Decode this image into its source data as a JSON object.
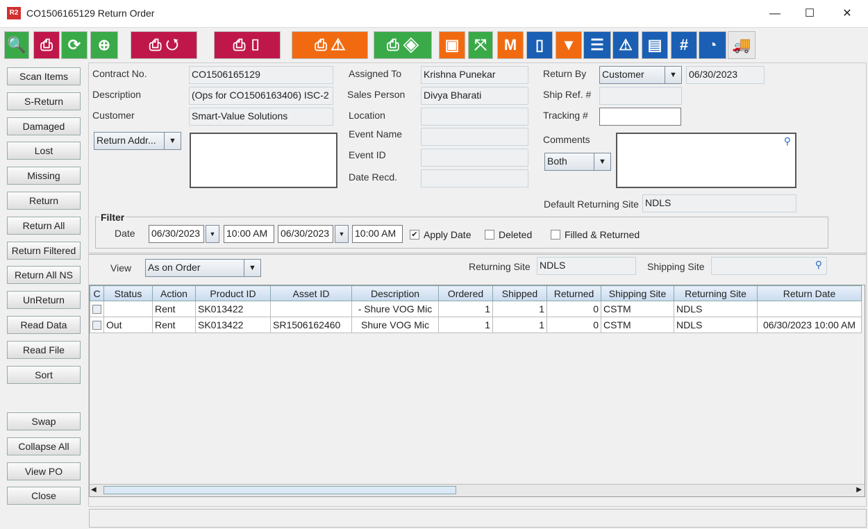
{
  "window": {
    "logo": "R2",
    "title": "CO1506165129 Return Order",
    "minimize": "—",
    "maximize": "☐",
    "close": "✕"
  },
  "toolbar": [
    {
      "icon": "search-icon",
      "glyph": "🔍",
      "color": "#3aaa49"
    },
    {
      "icon": "printer-icon",
      "glyph": "⎙",
      "color": "#c0174a"
    },
    {
      "icon": "refresh-icon",
      "glyph": "⟳",
      "color": "#3aaa49"
    },
    {
      "icon": "zoom-in-icon",
      "glyph": "⊕",
      "color": "#3aaa49"
    },
    {
      "icon": "print-return-icon",
      "glyph": "⎙ ↺",
      "color": "#c0174a"
    },
    {
      "icon": "print-box-icon",
      "glyph": "⎙ ▯",
      "color": "#c0174a"
    },
    {
      "icon": "print-warning-icon",
      "glyph": "⎙ ⚠",
      "color": "#f26a10"
    },
    {
      "icon": "print-layers-icon",
      "glyph": "⎙ ◈",
      "color": "#3aaa49"
    },
    {
      "icon": "box-icon",
      "glyph": "▣",
      "color": "#f26a10"
    },
    {
      "icon": "expand-icon",
      "glyph": "⤧",
      "color": "#3aaa49"
    },
    {
      "icon": "box-m-icon",
      "glyph": "M",
      "color": "#f26a10"
    },
    {
      "icon": "book-icon",
      "glyph": "▯",
      "color": "#1a5fb4"
    },
    {
      "icon": "filter-icon",
      "glyph": "▼",
      "color": "#f26a10"
    },
    {
      "icon": "list-icon",
      "glyph": "☰",
      "color": "#1a5fb4"
    },
    {
      "icon": "warning-eye-icon",
      "glyph": "⚠",
      "color": "#1a5fb4"
    },
    {
      "icon": "comment-icon",
      "glyph": "▤",
      "color": "#1a5fb4"
    },
    {
      "icon": "hash-icon",
      "glyph": "#",
      "color": "#1a5fb4"
    },
    {
      "icon": "gauge-icon",
      "glyph": "◔",
      "color": "#1a5fb4"
    },
    {
      "icon": "truck-icon",
      "glyph": "🚚",
      "color": "#e8e8e8"
    }
  ],
  "side_buttons": [
    "Scan Items",
    "S-Return",
    "Damaged",
    "Lost",
    "Missing",
    "Return",
    "Return All",
    "Return Filtered",
    "Return All NS",
    "UnReturn",
    "Read Data",
    "Read File",
    "Sort",
    "Swap",
    "Collapse All",
    "View PO",
    "Close"
  ],
  "form": {
    "contract_label": "Contract No.",
    "contract": "CO1506165129",
    "description_label": "Description",
    "description": "(Ops for CO1506163406) ISC-2",
    "customer_label": "Customer",
    "customer": "Smart-Value Solutions",
    "address_combo": "Return Addr...",
    "assigned_label": "Assigned To",
    "assigned": "Krishna Punekar",
    "sales_label": "Sales Person",
    "sales": "Divya Bharati",
    "location_label": "Location",
    "event_name_label": "Event Name",
    "event_id_label": "Event ID",
    "date_recd_label": "Date Recd.",
    "return_by_label": "Return By",
    "return_by": "Customer",
    "return_date": "06/30/2023",
    "ship_ref_label": "Ship Ref. #",
    "tracking_label": "Tracking #",
    "comments_label": "Comments",
    "comments_combo": "Both",
    "default_site_label": "Default Returning Site",
    "default_site": "NDLS"
  },
  "filter": {
    "title": "Filter",
    "date_label": "Date",
    "from_date": "06/30/2023",
    "from_time": "10:00 AM",
    "to_date": "06/30/2023",
    "to_time": "10:00 AM",
    "apply_date": "Apply Date",
    "apply_checked": true,
    "deleted": "Deleted",
    "filled": "Filled & Returned"
  },
  "view": {
    "label": "View",
    "value": "As on Order",
    "returning_label": "Returning Site",
    "returning": "NDLS",
    "shipping_label": "Shipping Site"
  },
  "table": {
    "columns": [
      "C",
      "Status",
      "Action",
      "Product ID",
      "Asset ID",
      "Description",
      "Ordered",
      "Shipped",
      "Returned",
      "Shipping Site",
      "Returning Site",
      "Return Date"
    ],
    "rows": [
      [
        "",
        "",
        "Rent",
        "SK013422",
        "",
        "- Shure VOG Mic",
        "1",
        "1",
        "0",
        "CSTM",
        "NDLS",
        ""
      ],
      [
        "",
        "Out",
        "Rent",
        "SK013422",
        "SR1506162460",
        "Shure VOG Mic",
        "1",
        "1",
        "0",
        "CSTM",
        "NDLS",
        "06/30/2023 10:00 AM"
      ]
    ]
  }
}
